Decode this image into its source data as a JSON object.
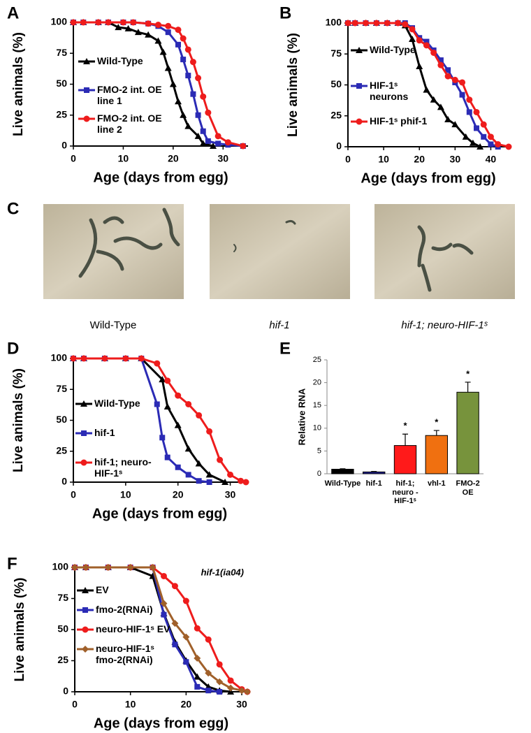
{
  "chart_data": [
    {
      "type": "line",
      "panel": "A",
      "x_label": "Age (days from egg)",
      "y_label": "Live animals (%)",
      "xlim": [
        0,
        35
      ],
      "ylim": [
        0,
        100
      ],
      "xticks": [
        0,
        10,
        20,
        30
      ],
      "yticks": [
        0,
        25,
        50,
        75,
        100
      ],
      "series": [
        {
          "name": "Wild-Type",
          "color": "#000000",
          "marker": "triangle",
          "x": [
            0,
            2,
            5,
            7,
            9,
            11,
            13,
            15,
            17,
            18,
            19,
            20,
            21,
            22,
            23,
            25,
            26,
            28
          ],
          "values": [
            100,
            100,
            100,
            100,
            96,
            95,
            92,
            90,
            85,
            76,
            63,
            50,
            36,
            25,
            16,
            8,
            2,
            0
          ]
        },
        {
          "name": "FMO-2 int. OE line 1",
          "color": "#2b2bb5",
          "marker": "square",
          "x": [
            0,
            2,
            5,
            7,
            10,
            12,
            15,
            17,
            19,
            21,
            22,
            23,
            24,
            25,
            26,
            27,
            29,
            31,
            34
          ],
          "values": [
            100,
            100,
            100,
            100,
            100,
            100,
            99,
            97,
            92,
            82,
            70,
            57,
            42,
            25,
            12,
            4,
            2,
            1,
            0
          ]
        },
        {
          "name": "FMO-2 int. OE line 2",
          "color": "#ee1c1c",
          "marker": "circle",
          "x": [
            0,
            2,
            5,
            7,
            10,
            12,
            15,
            17,
            19,
            21,
            22,
            23,
            24,
            25,
            26,
            27,
            29,
            31,
            34
          ],
          "values": [
            100,
            100,
            100,
            100,
            100,
            100,
            99,
            98,
            97,
            94,
            87,
            78,
            68,
            55,
            40,
            27,
            8,
            3,
            0
          ]
        }
      ]
    },
    {
      "type": "line",
      "panel": "B",
      "x_label": "Age (days from egg)",
      "y_label": "Live animals (%)",
      "xlim": [
        0,
        45
      ],
      "ylim": [
        0,
        100
      ],
      "xticks": [
        0,
        10,
        20,
        30,
        40
      ],
      "yticks": [
        0,
        25,
        50,
        75,
        100
      ],
      "series": [
        {
          "name": "Wild-Type",
          "color": "#000000",
          "marker": "triangle",
          "x": [
            0,
            2,
            5,
            8,
            11,
            14,
            16,
            18,
            20,
            22,
            24,
            26,
            28,
            30,
            33,
            35,
            37
          ],
          "values": [
            100,
            100,
            100,
            100,
            100,
            100,
            98,
            87,
            65,
            46,
            38,
            32,
            22,
            18,
            8,
            3,
            0
          ]
        },
        {
          "name": "HIF-1ˢ neurons",
          "color": "#2b2bb5",
          "marker": "square",
          "x": [
            0,
            2,
            5,
            8,
            11,
            14,
            16,
            18,
            20,
            22,
            24,
            26,
            28,
            30,
            32,
            34,
            36,
            38,
            40,
            42
          ],
          "values": [
            100,
            100,
            100,
            100,
            100,
            100,
            100,
            96,
            88,
            85,
            78,
            70,
            62,
            52,
            42,
            28,
            15,
            8,
            2,
            0
          ]
        },
        {
          "name": "HIF-1ˢ phif-1",
          "color": "#ee1c1c",
          "marker": "circle",
          "x": [
            0,
            2,
            5,
            8,
            11,
            14,
            16,
            18,
            20,
            22,
            24,
            26,
            28,
            30,
            32,
            34,
            36,
            38,
            40,
            42,
            45
          ],
          "values": [
            100,
            100,
            100,
            100,
            100,
            100,
            99,
            95,
            86,
            82,
            76,
            66,
            57,
            54,
            52,
            38,
            28,
            18,
            8,
            2,
            0
          ]
        }
      ]
    },
    {
      "type": "line",
      "panel": "D",
      "x_label": "Age (days from egg)",
      "y_label": "Live animals (%)",
      "xlim": [
        0,
        33
      ],
      "ylim": [
        0,
        100
      ],
      "xticks": [
        0,
        10,
        20,
        30
      ],
      "yticks": [
        0,
        25,
        50,
        75,
        100
      ],
      "series": [
        {
          "name": "Wild-Type",
          "color": "#000000",
          "marker": "triangle",
          "x": [
            0,
            2,
            6,
            10,
            13,
            17,
            18,
            20,
            22,
            24,
            26,
            29
          ],
          "values": [
            100,
            100,
            100,
            100,
            100,
            83,
            61,
            46,
            27,
            15,
            6,
            0
          ]
        },
        {
          "name": "hif-1",
          "color": "#2b2bb5",
          "marker": "square",
          "x": [
            0,
            2,
            6,
            10,
            13,
            16,
            17,
            18,
            20,
            22,
            24,
            26
          ],
          "values": [
            100,
            100,
            100,
            100,
            100,
            63,
            36,
            20,
            12,
            6,
            1,
            0
          ]
        },
        {
          "name": "hif-1; neuro-HIF-1ˢ",
          "color": "#ee1c1c",
          "marker": "circle",
          "x": [
            0,
            2,
            6,
            10,
            13,
            16,
            18,
            20,
            22,
            24,
            26,
            28,
            30,
            32,
            33
          ],
          "values": [
            100,
            100,
            100,
            100,
            100,
            96,
            82,
            70,
            63,
            54,
            41,
            18,
            6,
            1,
            0
          ]
        }
      ]
    },
    {
      "type": "bar",
      "panel": "E",
      "y_label": "Relative RNA",
      "ylim": [
        0,
        25
      ],
      "yticks": [
        0,
        5,
        10,
        15,
        20,
        25
      ],
      "categories": [
        "Wild-Type",
        "hif-1",
        "hif-1; neuro - HIF-1ˢ",
        "vhl-1",
        "FMO-2 OE"
      ],
      "values": [
        1.0,
        0.4,
        6.2,
        8.4,
        17.9
      ],
      "errors": [
        0.1,
        0.1,
        2.5,
        1.1,
        2.2
      ],
      "colors": [
        "#000000",
        "#1f1f8f",
        "#ff1a1a",
        "#f07010",
        "#77933c"
      ],
      "markers": [
        null,
        null,
        "*",
        "*",
        "*"
      ]
    },
    {
      "type": "line",
      "panel": "F",
      "x_label": "Age (days from egg)",
      "y_label": "Live animals (%)",
      "annotation": "hif-1(ia04)",
      "xlim": [
        0,
        31
      ],
      "ylim": [
        0,
        100
      ],
      "xticks": [
        0,
        10,
        20,
        30
      ],
      "yticks": [
        0,
        25,
        50,
        75,
        100
      ],
      "series": [
        {
          "name": "EV",
          "color": "#000000",
          "marker": "triangle",
          "x": [
            0,
            2,
            6,
            10,
            14,
            16,
            18,
            20,
            22,
            24,
            26,
            28
          ],
          "values": [
            100,
            100,
            100,
            100,
            93,
            63,
            40,
            25,
            12,
            4,
            1,
            0
          ]
        },
        {
          "name": "fmo-2(RNAi)",
          "color": "#2b2bb5",
          "marker": "square",
          "x": [
            0,
            2,
            6,
            10,
            14,
            16,
            18,
            20,
            22,
            24,
            26
          ],
          "values": [
            100,
            100,
            100,
            100,
            100,
            62,
            38,
            24,
            4,
            1,
            0
          ]
        },
        {
          "name": "neuro-HIF-1ˢ EV",
          "color": "#ee1c1c",
          "marker": "circle",
          "x": [
            0,
            2,
            6,
            10,
            14,
            16,
            18,
            20,
            22,
            24,
            26,
            28,
            30,
            31
          ],
          "values": [
            100,
            100,
            100,
            100,
            100,
            93,
            85,
            73,
            51,
            42,
            22,
            9,
            2,
            0
          ]
        },
        {
          "name": "neuro-HIF-1ˢ fmo-2(RNAi)",
          "color": "#a0602a",
          "marker": "diamond",
          "x": [
            0,
            2,
            6,
            10,
            14,
            16,
            18,
            20,
            22,
            24,
            26,
            28,
            30,
            31
          ],
          "values": [
            100,
            100,
            100,
            100,
            100,
            71,
            55,
            44,
            27,
            15,
            8,
            3,
            1,
            0
          ]
        }
      ]
    }
  ],
  "panel_c": {
    "label": "C",
    "captions": [
      "Wild-Type",
      "hif-1",
      "hif-1; neuro-HIF-1ˢ"
    ]
  }
}
